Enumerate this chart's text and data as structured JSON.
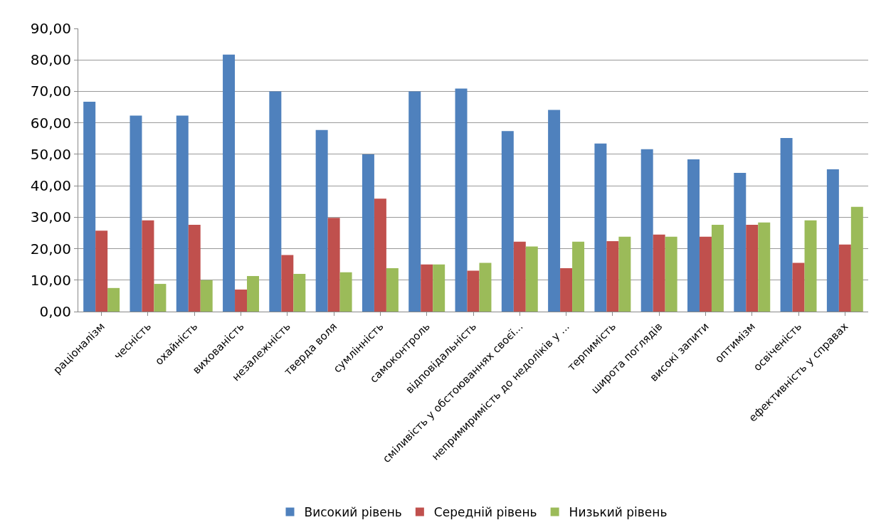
{
  "chart_data": {
    "type": "bar",
    "categories": [
      "раціоналізм",
      "чесність",
      "охайність",
      "вихованість",
      "незалежність",
      "тверда воля",
      "сумлінність",
      "самоконтроль",
      "відповідальність",
      "сміливість у обстоюваннях своєї...",
      "непримиримість до недоліків у ...",
      "терпимість",
      "широта поглядів",
      "високі запити",
      "оптимізм",
      "освіченість",
      "ефективність у справах"
    ],
    "series": [
      {
        "name": "Високий рівень",
        "color": "#4f81bd",
        "values": [
          66.7,
          62.3,
          62.3,
          81.7,
          70.0,
          57.7,
          50.0,
          70.0,
          70.9,
          57.4,
          64.1,
          53.4,
          51.6,
          48.4,
          44.1,
          55.2,
          45.2
        ]
      },
      {
        "name": "Середній рівень",
        "color": "#c0504d",
        "values": [
          25.7,
          29.0,
          27.6,
          7.0,
          18.0,
          29.8,
          35.9,
          15.0,
          13.0,
          22.2,
          13.8,
          22.4,
          24.5,
          23.8,
          27.6,
          15.5,
          21.3
        ]
      },
      {
        "name": "Низький рівень",
        "color": "#9bbb59",
        "values": [
          7.5,
          8.8,
          10.0,
          11.3,
          12.0,
          12.5,
          13.8,
          15.0,
          15.5,
          20.7,
          22.2,
          23.8,
          23.8,
          27.6,
          28.3,
          29.0,
          33.3
        ]
      }
    ],
    "ylim": [
      0,
      90
    ],
    "yticks": [
      {
        "value": 0,
        "label": "0,00"
      },
      {
        "value": 10,
        "label": "10,00"
      },
      {
        "value": 20,
        "label": "20,00"
      },
      {
        "value": 30,
        "label": "30,00"
      },
      {
        "value": 40,
        "label": "40,00"
      },
      {
        "value": 50,
        "label": "50,00"
      },
      {
        "value": 60,
        "label": "60,00"
      },
      {
        "value": 70,
        "label": "70,00"
      },
      {
        "value": 80,
        "label": "80,00"
      },
      {
        "value": 90,
        "label": "90,00"
      }
    ],
    "grid": "y",
    "legend": "bottom"
  }
}
